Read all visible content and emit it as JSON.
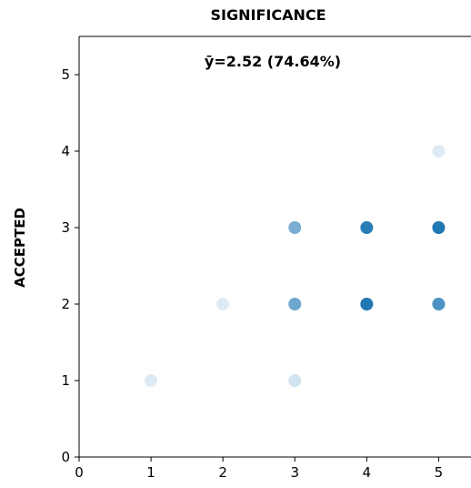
{
  "chart_data": {
    "type": "scatter",
    "title": "SIGNIFICANCE",
    "xlabel": "",
    "ylabel": "ACCEPTED",
    "annotation": "ȳ=2.52   (74.64%)",
    "xlim": [
      0,
      5.45
    ],
    "ylim": [
      0,
      5.5
    ],
    "x_ticks": [
      0,
      1,
      2,
      3,
      4,
      5
    ],
    "y_ticks": [
      0,
      1,
      2,
      3,
      4,
      5
    ],
    "grid": false,
    "color": "#1f77b4",
    "points": [
      {
        "x": 1,
        "y": 1,
        "opacity": 0.15
      },
      {
        "x": 2,
        "y": 2,
        "opacity": 0.15
      },
      {
        "x": 3,
        "y": 1,
        "opacity": 0.2
      },
      {
        "x": 3,
        "y": 2,
        "opacity": 0.65
      },
      {
        "x": 3,
        "y": 3,
        "opacity": 0.6
      },
      {
        "x": 4,
        "y": 2,
        "opacity": 1.0
      },
      {
        "x": 4,
        "y": 3,
        "opacity": 0.95
      },
      {
        "x": 5,
        "y": 2,
        "opacity": 0.8
      },
      {
        "x": 5,
        "y": 3,
        "opacity": 1.0
      },
      {
        "x": 5,
        "y": 4,
        "opacity": 0.15
      }
    ]
  }
}
